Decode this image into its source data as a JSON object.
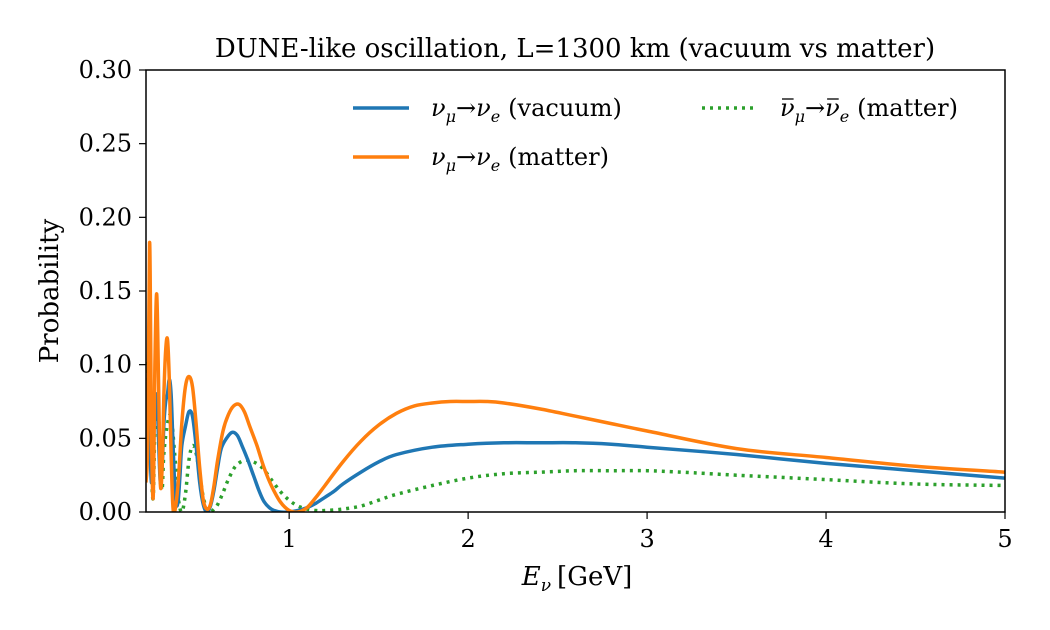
{
  "chart_data": {
    "type": "line",
    "title": "DUNE-like oscillation, L=1300 km (vacuum vs matter)",
    "xlabel_symbol": "E",
    "xlabel_sub": "ν",
    "xlabel_unit": "[GeV]",
    "ylabel": "Probability",
    "xlim": [
      0.2,
      5.0
    ],
    "ylim": [
      0.0,
      0.3
    ],
    "xticks": [
      1,
      2,
      3,
      4,
      5
    ],
    "yticks": [
      0.0,
      0.05,
      0.1,
      0.15,
      0.2,
      0.25,
      0.3
    ],
    "ytick_labels": [
      "0.00",
      "0.05",
      "0.10",
      "0.15",
      "0.20",
      "0.25",
      "0.30"
    ],
    "grid": false,
    "legend_placement": "top-right",
    "series": [
      {
        "name": "ν_μ→ν_e (vacuum)",
        "legend": {
          "from": "ν",
          "from_sub": "μ",
          "to": "ν",
          "to_sub": "e",
          "qual": "(vacuum)",
          "bar": false
        },
        "color": "#1f77b4",
        "style": "solid",
        "x": [
          0.2,
          0.215,
          0.23,
          0.245,
          0.26,
          0.27,
          0.28,
          0.29,
          0.3,
          0.31,
          0.32,
          0.33,
          0.34,
          0.35,
          0.36,
          0.37,
          0.38,
          0.39,
          0.4,
          0.42,
          0.44,
          0.46,
          0.48,
          0.5,
          0.52,
          0.54,
          0.56,
          0.58,
          0.6,
          0.62,
          0.65,
          0.68,
          0.71,
          0.74,
          0.77,
          0.8,
          0.83,
          0.86,
          0.9,
          0.95,
          1.0,
          1.05,
          1.1,
          1.15,
          1.2,
          1.25,
          1.3,
          1.4,
          1.5,
          1.6,
          1.8,
          2.0,
          2.2,
          2.4,
          2.6,
          2.8,
          3.0,
          3.5,
          4.0,
          4.5,
          5.0
        ],
        "y": [
          0.03,
          0.07,
          0.02,
          0.06,
          0.08,
          0.05,
          0.02,
          0.03,
          0.06,
          0.075,
          0.08,
          0.09,
          0.08,
          0.05,
          0.02,
          0.005,
          0.008,
          0.025,
          0.045,
          0.058,
          0.068,
          0.065,
          0.045,
          0.02,
          0.005,
          0.0,
          0.004,
          0.015,
          0.03,
          0.043,
          0.05,
          0.054,
          0.052,
          0.044,
          0.035,
          0.025,
          0.015,
          0.007,
          0.002,
          0.0,
          0.0,
          0.001,
          0.003,
          0.006,
          0.01,
          0.014,
          0.019,
          0.027,
          0.034,
          0.039,
          0.044,
          0.046,
          0.047,
          0.047,
          0.047,
          0.046,
          0.044,
          0.039,
          0.033,
          0.028,
          0.023
        ]
      },
      {
        "name": "ν_μ→ν_e (matter)",
        "legend": {
          "from": "ν",
          "from_sub": "μ",
          "to": "ν",
          "to_sub": "e",
          "qual": "(matter)",
          "bar": false
        },
        "color": "#ff7f0e",
        "style": "solid",
        "x": [
          0.2,
          0.21,
          0.22,
          0.23,
          0.24,
          0.25,
          0.26,
          0.27,
          0.28,
          0.29,
          0.3,
          0.31,
          0.32,
          0.33,
          0.34,
          0.35,
          0.36,
          0.38,
          0.4,
          0.42,
          0.44,
          0.46,
          0.48,
          0.5,
          0.52,
          0.54,
          0.56,
          0.58,
          0.6,
          0.63,
          0.66,
          0.69,
          0.72,
          0.75,
          0.78,
          0.82,
          0.86,
          0.9,
          0.95,
          1.0,
          1.05,
          1.1,
          1.15,
          1.2,
          1.3,
          1.4,
          1.5,
          1.6,
          1.7,
          1.8,
          1.9,
          2.0,
          2.1,
          2.2,
          2.4,
          2.6,
          2.8,
          3.0,
          3.5,
          4.0,
          4.5,
          5.0
        ],
        "y": [
          0.02,
          0.05,
          0.183,
          0.06,
          0.01,
          0.1,
          0.148,
          0.09,
          0.02,
          0.03,
          0.08,
          0.11,
          0.117,
          0.09,
          0.04,
          0.005,
          0.0,
          0.02,
          0.06,
          0.085,
          0.092,
          0.085,
          0.06,
          0.03,
          0.008,
          0.002,
          0.005,
          0.018,
          0.035,
          0.055,
          0.066,
          0.072,
          0.073,
          0.068,
          0.058,
          0.045,
          0.03,
          0.018,
          0.007,
          0.001,
          0.0,
          0.003,
          0.01,
          0.018,
          0.034,
          0.048,
          0.059,
          0.067,
          0.072,
          0.074,
          0.075,
          0.075,
          0.075,
          0.074,
          0.07,
          0.065,
          0.06,
          0.055,
          0.043,
          0.037,
          0.031,
          0.027
        ]
      },
      {
        "name": "ν̄_μ→ν̄_e (matter)",
        "legend": {
          "from": "ν",
          "from_sub": "μ",
          "to": "ν",
          "to_sub": "e",
          "qual": "(matter)",
          "bar": true
        },
        "color": "#2ca02c",
        "style": "dotted",
        "x": [
          0.2,
          0.21,
          0.22,
          0.23,
          0.24,
          0.25,
          0.26,
          0.27,
          0.28,
          0.29,
          0.3,
          0.32,
          0.34,
          0.36,
          0.38,
          0.4,
          0.42,
          0.44,
          0.46,
          0.48,
          0.5,
          0.52,
          0.54,
          0.56,
          0.58,
          0.6,
          0.63,
          0.66,
          0.7,
          0.75,
          0.8,
          0.85,
          0.9,
          0.95,
          1.0,
          1.05,
          1.1,
          1.15,
          1.2,
          1.3,
          1.4,
          1.5,
          1.6,
          1.8,
          2.0,
          2.2,
          2.4,
          2.6,
          2.8,
          3.0,
          3.2,
          3.5,
          4.0,
          4.5,
          5.0
        ],
        "y": [
          0.04,
          0.1,
          0.09,
          0.03,
          0.01,
          0.06,
          0.08,
          0.07,
          0.03,
          0.015,
          0.04,
          0.06,
          0.065,
          0.04,
          0.01,
          0.0,
          0.012,
          0.035,
          0.045,
          0.04,
          0.025,
          0.01,
          0.002,
          0.0,
          0.002,
          0.005,
          0.013,
          0.022,
          0.031,
          0.035,
          0.034,
          0.03,
          0.022,
          0.014,
          0.008,
          0.004,
          0.002,
          0.001,
          0.001,
          0.002,
          0.004,
          0.008,
          0.012,
          0.018,
          0.023,
          0.026,
          0.027,
          0.028,
          0.028,
          0.028,
          0.027,
          0.025,
          0.022,
          0.019,
          0.018
        ]
      }
    ]
  }
}
